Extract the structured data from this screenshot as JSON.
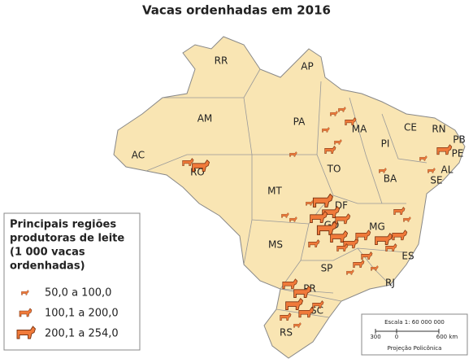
{
  "title": "Vacas ordenhadas em 2016",
  "states": [
    "RR",
    "AP",
    "AM",
    "PA",
    "MA",
    "CE",
    "RN",
    "PB",
    "PE",
    "AL",
    "SE",
    "PI",
    "BA",
    "AC",
    "RO",
    "TO",
    "MT",
    "DF",
    "GO",
    "MG",
    "ES",
    "MS",
    "SP",
    "RJ",
    "PR",
    "SC",
    "RS"
  ],
  "legend": {
    "title": [
      "Principais regiões",
      "produtoras de leite",
      "(1 000 vacas",
      "ordenhadas)"
    ],
    "items": [
      "50,0 a 100,0",
      "100,1 a 200,0",
      "200,1 a 254,0"
    ]
  },
  "scale": {
    "title": "Escala 1: 60 000 000",
    "ticks": [
      "300",
      "0",
      "600 km"
    ],
    "projection": "Projeção Policônica"
  }
}
